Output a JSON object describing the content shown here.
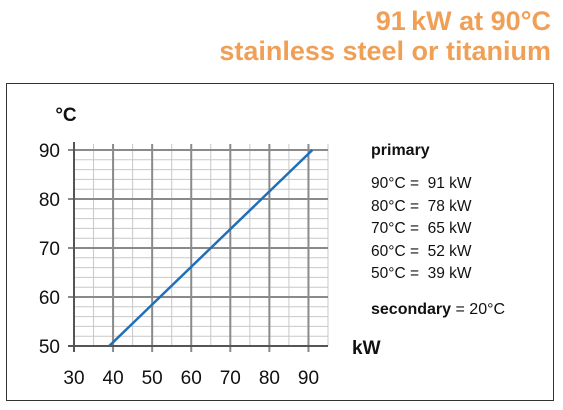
{
  "header": {
    "title": "91 kW at 90°C",
    "subtitle": "stainless steel or titanium"
  },
  "chart_data": {
    "type": "line",
    "title": "91 kW at 90°C",
    "subtitle": "stainless steel or titanium",
    "xlabel": "kW",
    "ylabel": "°C",
    "xlim": [
      30,
      95
    ],
    "ylim": [
      50,
      90
    ],
    "x_ticks": [
      30,
      40,
      50,
      60,
      70,
      80,
      90
    ],
    "y_ticks": [
      50,
      60,
      70,
      80,
      90
    ],
    "grid": true,
    "series": [
      {
        "name": "primary",
        "color": "#1f6fb8",
        "x": [
          39,
          52,
          65,
          78,
          91
        ],
        "y": [
          50,
          60,
          70,
          80,
          90
        ]
      }
    ],
    "legend": {
      "placement": "right",
      "title": "primary",
      "entries": [
        "90°C =  91 kW",
        "80°C =  78 kW",
        "70°C =  65 kW",
        "60°C =  52 kW",
        "50°C =  39 kW"
      ]
    },
    "annotation": {
      "label": "secondary",
      "value": "= 20°C"
    }
  }
}
